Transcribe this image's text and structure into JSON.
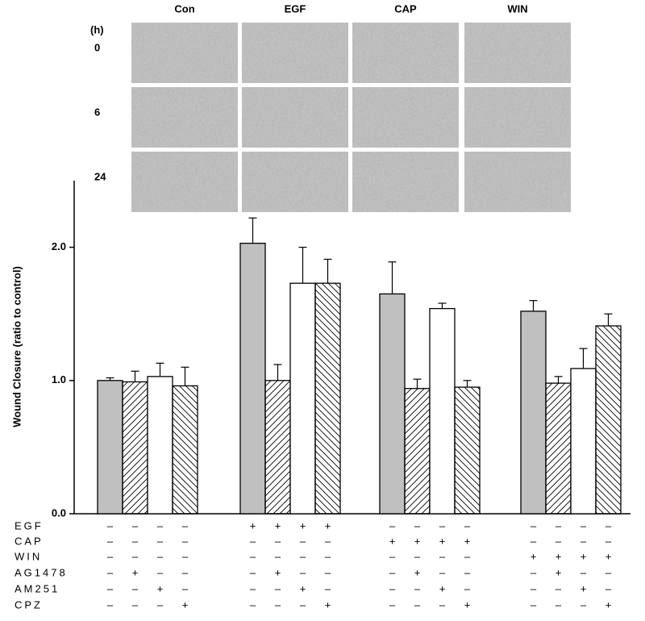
{
  "micrographs": {
    "columns": [
      "Con",
      "EGF",
      "CAP",
      "WIN"
    ],
    "unit": "(h)",
    "rows": [
      "0",
      "6",
      "24"
    ]
  },
  "chart_data": {
    "type": "bar",
    "y_label": "Wound Closure (ratio to control)",
    "values": [
      1.0,
      0.99,
      1.03,
      0.96,
      2.03,
      1.0,
      1.73,
      1.73,
      1.65,
      0.94,
      1.54,
      0.95,
      1.52,
      0.98,
      1.09,
      1.41
    ],
    "errors": [
      0.02,
      0.08,
      0.1,
      0.14,
      0.19,
      0.12,
      0.27,
      0.18,
      0.24,
      0.07,
      0.04,
      0.05,
      0.08,
      0.05,
      0.15,
      0.09
    ],
    "bar_styles": [
      "#c0c0c0",
      "hatch-up",
      "#ffffff",
      "hatch-down"
    ],
    "ylim": [
      0,
      2.5
    ],
    "yticks": [
      {
        "value": 0,
        "label": "0.0"
      },
      {
        "value": 1,
        "label": "1.0"
      },
      {
        "value": 2,
        "label": "2.0"
      }
    ],
    "treatments": [
      {
        "label": "EGF",
        "signs": [
          "–",
          "–",
          "–",
          "–",
          "+",
          "+",
          "+",
          "+",
          "–",
          "–",
          "–",
          "–",
          "–",
          "–",
          "–",
          "–"
        ]
      },
      {
        "label": "CAP",
        "signs": [
          "–",
          "–",
          "–",
          "–",
          "–",
          "–",
          "–",
          "–",
          "+",
          "+",
          "+",
          "+",
          "–",
          "–",
          "–",
          "–"
        ]
      },
      {
        "label": "WIN",
        "signs": [
          "–",
          "–",
          "–",
          "–",
          "–",
          "–",
          "–",
          "–",
          "–",
          "–",
          "–",
          "–",
          "+",
          "+",
          "+",
          "+"
        ]
      },
      {
        "label": "AG1478",
        "signs": [
          "–",
          "+",
          "–",
          "–",
          "–",
          "+",
          "–",
          "–",
          "–",
          "+",
          "–",
          "–",
          "–",
          "+",
          "–",
          "–"
        ]
      },
      {
        "label": "AM251",
        "signs": [
          "–",
          "–",
          "+",
          "–",
          "–",
          "–",
          "+",
          "–",
          "–",
          "–",
          "+",
          "–",
          "–",
          "–",
          "+",
          "–"
        ]
      },
      {
        "label": "CPZ",
        "signs": [
          "–",
          "–",
          "–",
          "+",
          "–",
          "–",
          "–",
          "+",
          "–",
          "–",
          "–",
          "+",
          "–",
          "–",
          "–",
          "+"
        ]
      }
    ]
  }
}
